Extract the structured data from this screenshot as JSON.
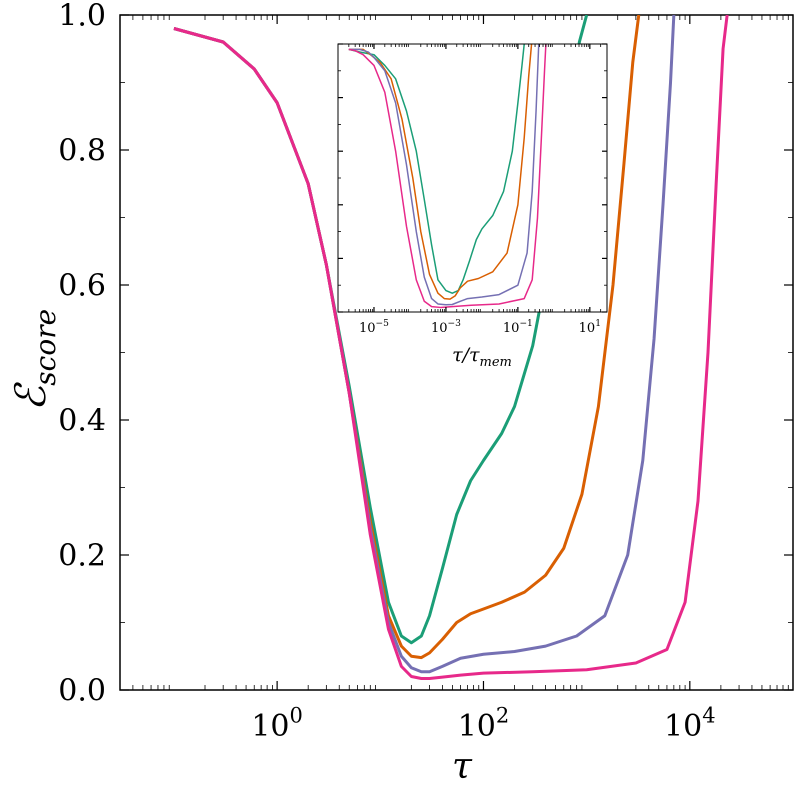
{
  "chart_data": [
    {
      "type": "line",
      "title": "",
      "xlabel": "τ",
      "ylabel": "ℰ",
      "ylabel_sub": "score",
      "xscale": "log",
      "xlim": [
        0.03,
        100000
      ],
      "ylim": [
        0.0,
        1.0
      ],
      "x_ticks": [
        {
          "value": 1,
          "mantissa": "10",
          "exp": "0"
        },
        {
          "value": 100,
          "mantissa": "10",
          "exp": "2"
        },
        {
          "value": 10000,
          "mantissa": "10",
          "exp": "4"
        }
      ],
      "y_ticks": [
        "0.0",
        "0.2",
        "0.4",
        "0.6",
        "0.8",
        "1.0"
      ],
      "grid": false,
      "legend": "none",
      "series": [
        {
          "color": "#1b9e77",
          "points": [
            [
              0.1,
              0.98
            ],
            [
              0.3,
              0.96
            ],
            [
              0.6,
              0.92
            ],
            [
              1,
              0.87
            ],
            [
              2,
              0.75
            ],
            [
              3,
              0.63
            ],
            [
              5,
              0.45
            ],
            [
              8,
              0.27
            ],
            [
              12,
              0.13
            ],
            [
              16,
              0.08
            ],
            [
              20,
              0.07
            ],
            [
              25,
              0.08
            ],
            [
              30,
              0.11
            ],
            [
              40,
              0.18
            ],
            [
              55,
              0.26
            ],
            [
              75,
              0.31
            ],
            [
              100,
              0.34
            ],
            [
              150,
              0.38
            ],
            [
              200,
              0.42
            ],
            [
              300,
              0.51
            ],
            [
              400,
              0.61
            ],
            [
              550,
              0.75
            ],
            [
              700,
              0.87
            ],
            [
              850,
              0.96
            ],
            [
              1000,
              1.0
            ]
          ]
        },
        {
          "color": "#d95f02",
          "points": [
            [
              0.1,
              0.98
            ],
            [
              0.3,
              0.96
            ],
            [
              0.6,
              0.92
            ],
            [
              1,
              0.87
            ],
            [
              2,
              0.75
            ],
            [
              3,
              0.63
            ],
            [
              5,
              0.44
            ],
            [
              8,
              0.25
            ],
            [
              12,
              0.11
            ],
            [
              16,
              0.065
            ],
            [
              20,
              0.05
            ],
            [
              25,
              0.048
            ],
            [
              30,
              0.055
            ],
            [
              40,
              0.075
            ],
            [
              55,
              0.1
            ],
            [
              75,
              0.113
            ],
            [
              100,
              0.12
            ],
            [
              150,
              0.13
            ],
            [
              250,
              0.145
            ],
            [
              400,
              0.17
            ],
            [
              600,
              0.21
            ],
            [
              900,
              0.29
            ],
            [
              1300,
              0.42
            ],
            [
              1800,
              0.6
            ],
            [
              2300,
              0.78
            ],
            [
              2800,
              0.93
            ],
            [
              3200,
              1.0
            ]
          ]
        },
        {
          "color": "#7570b3",
          "points": [
            [
              0.1,
              0.98
            ],
            [
              0.3,
              0.96
            ],
            [
              0.6,
              0.92
            ],
            [
              1,
              0.87
            ],
            [
              2,
              0.75
            ],
            [
              3,
              0.63
            ],
            [
              5,
              0.44
            ],
            [
              8,
              0.24
            ],
            [
              12,
              0.1
            ],
            [
              16,
              0.05
            ],
            [
              20,
              0.033
            ],
            [
              25,
              0.027
            ],
            [
              30,
              0.027
            ],
            [
              40,
              0.035
            ],
            [
              60,
              0.047
            ],
            [
              100,
              0.053
            ],
            [
              200,
              0.057
            ],
            [
              400,
              0.065
            ],
            [
              800,
              0.08
            ],
            [
              1500,
              0.11
            ],
            [
              2500,
              0.2
            ],
            [
              3500,
              0.34
            ],
            [
              4500,
              0.52
            ],
            [
              5500,
              0.72
            ],
            [
              6500,
              0.9
            ],
            [
              7000,
              1.0
            ]
          ]
        },
        {
          "color": "#e7298a",
          "points": [
            [
              0.1,
              0.98
            ],
            [
              0.3,
              0.96
            ],
            [
              0.6,
              0.92
            ],
            [
              1,
              0.87
            ],
            [
              2,
              0.75
            ],
            [
              3,
              0.63
            ],
            [
              5,
              0.44
            ],
            [
              8,
              0.23
            ],
            [
              12,
              0.09
            ],
            [
              16,
              0.035
            ],
            [
              20,
              0.02
            ],
            [
              25,
              0.017
            ],
            [
              30,
              0.017
            ],
            [
              40,
              0.019
            ],
            [
              60,
              0.022
            ],
            [
              100,
              0.025
            ],
            [
              300,
              0.027
            ],
            [
              1000,
              0.03
            ],
            [
              3000,
              0.04
            ],
            [
              6000,
              0.06
            ],
            [
              9000,
              0.13
            ],
            [
              12000,
              0.28
            ],
            [
              15000,
              0.5
            ],
            [
              18000,
              0.75
            ],
            [
              21000,
              0.95
            ],
            [
              23000,
              1.0
            ]
          ]
        }
      ]
    },
    {
      "type": "line",
      "title": "",
      "xlabel": "τ/τ",
      "xlabel_sub": "mem",
      "ylabel": "",
      "xscale": "log",
      "xlim": [
        1e-06,
        30
      ],
      "ylim": [
        0.0,
        1.0
      ],
      "x_ticks": [
        {
          "value": 1e-05,
          "mantissa": "10",
          "exp": "−5"
        },
        {
          "value": 0.001,
          "mantissa": "10",
          "exp": "−3"
        },
        {
          "value": 0.1,
          "mantissa": "10",
          "exp": "−1"
        },
        {
          "value": 10,
          "mantissa": "10",
          "exp": "1"
        }
      ],
      "y_ticks": [],
      "grid": false,
      "legend": "none",
      "series": [
        {
          "color": "#1b9e77",
          "points": [
            [
              2e-06,
              0.98
            ],
            [
              4e-06,
              0.97
            ],
            [
              1e-05,
              0.96
            ],
            [
              2e-05,
              0.92
            ],
            [
              4e-05,
              0.87
            ],
            [
              8e-05,
              0.75
            ],
            [
              0.00015,
              0.6
            ],
            [
              0.00025,
              0.42
            ],
            [
              0.0004,
              0.25
            ],
            [
              0.0006,
              0.12
            ],
            [
              0.001,
              0.08
            ],
            [
              0.0015,
              0.07
            ],
            [
              0.0022,
              0.08
            ],
            [
              0.003,
              0.12
            ],
            [
              0.0045,
              0.19
            ],
            [
              0.007,
              0.27
            ],
            [
              0.01,
              0.31
            ],
            [
              0.02,
              0.36
            ],
            [
              0.04,
              0.45
            ],
            [
              0.07,
              0.6
            ],
            [
              0.1,
              0.78
            ],
            [
              0.13,
              0.92
            ],
            [
              0.15,
              1.0
            ]
          ]
        },
        {
          "color": "#d95f02",
          "points": [
            [
              2e-06,
              0.98
            ],
            [
              5e-06,
              0.98
            ],
            [
              8e-06,
              0.96
            ],
            [
              1.5e-05,
              0.93
            ],
            [
              3e-05,
              0.87
            ],
            [
              6e-05,
              0.72
            ],
            [
              0.00012,
              0.5
            ],
            [
              0.0002,
              0.3
            ],
            [
              0.00035,
              0.14
            ],
            [
              0.0006,
              0.07
            ],
            [
              0.0009,
              0.05
            ],
            [
              0.0013,
              0.048
            ],
            [
              0.0018,
              0.06
            ],
            [
              0.0025,
              0.09
            ],
            [
              0.004,
              0.115
            ],
            [
              0.008,
              0.125
            ],
            [
              0.02,
              0.15
            ],
            [
              0.05,
              0.22
            ],
            [
              0.1,
              0.4
            ],
            [
              0.15,
              0.65
            ],
            [
              0.2,
              0.88
            ],
            [
              0.24,
              1.0
            ]
          ]
        },
        {
          "color": "#7570b3",
          "points": [
            [
              2e-06,
              0.98
            ],
            [
              4e-06,
              0.98
            ],
            [
              7e-06,
              0.97
            ],
            [
              1e-05,
              0.95
            ],
            [
              2e-05,
              0.9
            ],
            [
              4e-05,
              0.78
            ],
            [
              8e-05,
              0.55
            ],
            [
              0.00015,
              0.3
            ],
            [
              0.00025,
              0.13
            ],
            [
              0.0004,
              0.05
            ],
            [
              0.0006,
              0.03
            ],
            [
              0.001,
              0.027
            ],
            [
              0.0015,
              0.028
            ],
            [
              0.0025,
              0.04
            ],
            [
              0.004,
              0.05
            ],
            [
              0.01,
              0.056
            ],
            [
              0.03,
              0.065
            ],
            [
              0.1,
              0.1
            ],
            [
              0.18,
              0.22
            ],
            [
              0.25,
              0.45
            ],
            [
              0.32,
              0.75
            ],
            [
              0.38,
              1.0
            ]
          ]
        },
        {
          "color": "#e7298a",
          "points": [
            [
              2e-06,
              0.98
            ],
            [
              3e-06,
              0.975
            ],
            [
              5e-06,
              0.96
            ],
            [
              1e-05,
              0.92
            ],
            [
              2e-05,
              0.82
            ],
            [
              4e-05,
              0.6
            ],
            [
              8e-05,
              0.32
            ],
            [
              0.00015,
              0.12
            ],
            [
              0.00025,
              0.04
            ],
            [
              0.0004,
              0.02
            ],
            [
              0.0007,
              0.017
            ],
            [
              0.0015,
              0.02
            ],
            [
              0.005,
              0.025
            ],
            [
              0.03,
              0.03
            ],
            [
              0.15,
              0.05
            ],
            [
              0.25,
              0.12
            ],
            [
              0.35,
              0.35
            ],
            [
              0.45,
              0.65
            ],
            [
              0.55,
              0.9
            ],
            [
              0.6,
              1.0
            ]
          ]
        }
      ]
    }
  ]
}
